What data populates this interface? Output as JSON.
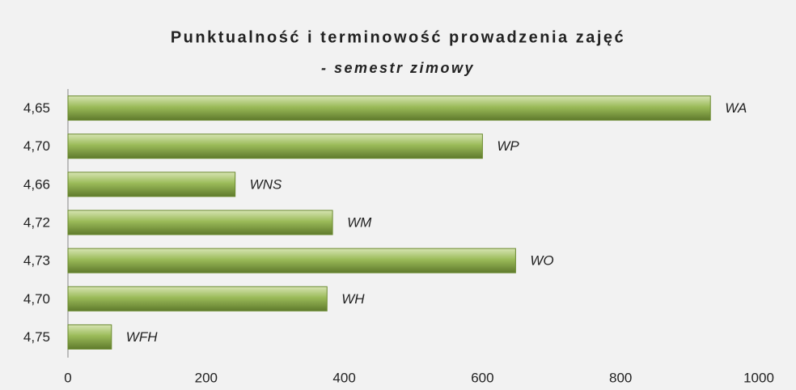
{
  "chart_data": {
    "type": "bar",
    "orientation": "horizontal",
    "title": "Punktualność i terminowość prowadzenia zajęć",
    "subtitle": "- semestr zimowy",
    "categories": [
      "4,65",
      "4,70",
      "4,66",
      "4,72",
      "4,73",
      "4,70",
      "4,75"
    ],
    "values": [
      930,
      600,
      242,
      383,
      648,
      375,
      63
    ],
    "value_names": [
      "WA",
      "WP",
      "WNS",
      "WM",
      "WO",
      "WH",
      "WFH"
    ],
    "color": "#9bbb59",
    "xlim": [
      0,
      1000
    ],
    "xticks": [
      0,
      200,
      400,
      600,
      800,
      1000
    ],
    "grid": false
  }
}
